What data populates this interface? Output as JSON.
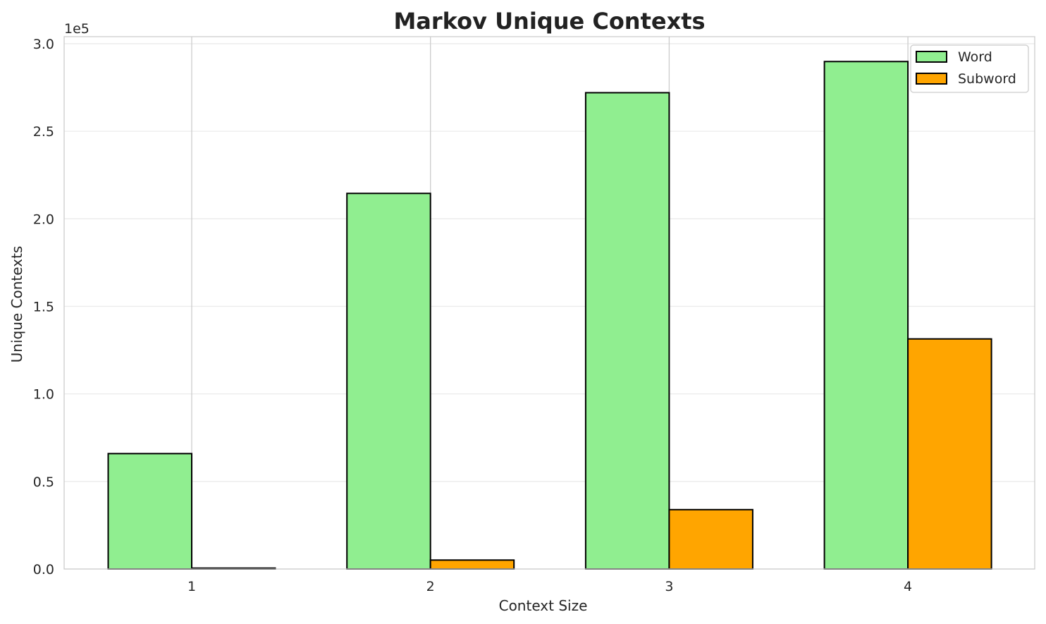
{
  "chart_data": {
    "type": "bar",
    "title": "Markov Unique Contexts",
    "xlabel": "Context Size",
    "ylabel": "Unique Contexts",
    "offset_label": "1e5",
    "categories": [
      "1",
      "2",
      "3",
      "4"
    ],
    "series": [
      {
        "name": "Word",
        "color": "#90ee90",
        "values": [
          65900,
          214500,
          272000,
          289800
        ]
      },
      {
        "name": "Subword",
        "color": "#ffa500",
        "values": [
          500,
          5100,
          33900,
          131400
        ]
      }
    ],
    "ylim": [
      0,
      304000
    ],
    "yticks": [
      0,
      50000,
      100000,
      150000,
      200000,
      250000,
      300000
    ],
    "ytick_labels": [
      "0.0",
      "0.5",
      "1.0",
      "1.5",
      "2.0",
      "2.5",
      "3.0"
    ],
    "grid": true,
    "legend_position": "top-right",
    "edge_color": "#000000"
  }
}
